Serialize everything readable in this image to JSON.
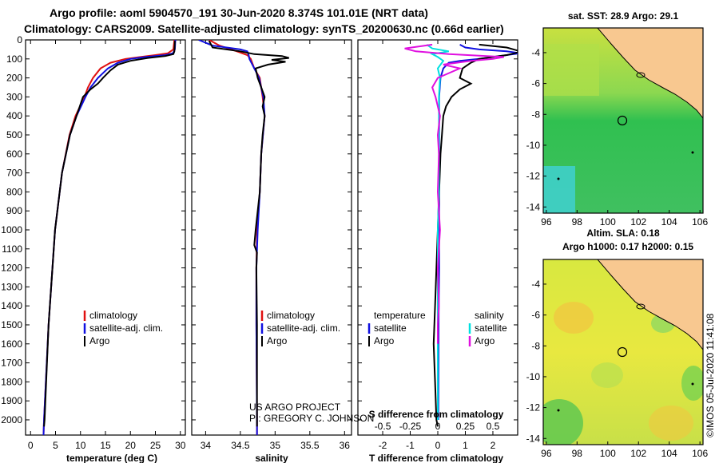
{
  "header": {
    "line1": "Argo profile: aoml 5904570_191 30-Jun-2020 8.374S 101.01E (NRT data)",
    "line2": "Climatology: CARS2009. Satellite-adjusted climatology: synTS_20200630.nc (0.66d earlier)"
  },
  "colors": {
    "climatology": "#e01010",
    "satellite": "#1010e0",
    "argo": "#000000",
    "sat_salinity": "#00e0e0",
    "argo_salinity": "#e010e0",
    "land": "#f8c890"
  },
  "chart_data": [
    {
      "type": "line",
      "id": "temperature",
      "xlabel": "temperature (deg C)",
      "ylabel": "",
      "xlim": [
        -1,
        31
      ],
      "ylim": [
        0,
        2080
      ],
      "xticks": [
        "0",
        "5",
        "10",
        "15",
        "20",
        "25",
        "30"
      ],
      "xtick_values": [
        0,
        5,
        10,
        15,
        20,
        25,
        30
      ],
      "yticks": [
        "0",
        "100",
        "200",
        "300",
        "400",
        "500",
        "600",
        "700",
        "800",
        "900",
        "1000",
        "1100",
        "1200",
        "1300",
        "1400",
        "1500",
        "1600",
        "1700",
        "1800",
        "1900",
        "2000"
      ],
      "ytick_values": [
        0,
        100,
        200,
        300,
        400,
        500,
        600,
        700,
        800,
        900,
        1000,
        1100,
        1200,
        1300,
        1400,
        1500,
        1600,
        1700,
        1800,
        1900,
        2000
      ],
      "legend": [
        "climatology",
        "satellite-adj. clim.",
        "Argo"
      ],
      "series": [
        {
          "name": "climatology",
          "color": "#e01010",
          "depth": [
            0,
            50,
            70,
            80,
            90,
            100,
            120,
            150,
            200,
            250,
            300,
            400,
            500,
            700,
            1000,
            1500,
            2000,
            2080
          ],
          "value": [
            28.8,
            28.6,
            27.5,
            25,
            22,
            19,
            16,
            14,
            12.5,
            11.5,
            10.8,
            9,
            7.8,
            6.3,
            4.9,
            3.6,
            2.7,
            2.6
          ]
        },
        {
          "name": "satellite-adj. clim.",
          "color": "#1010e0",
          "depth": [
            0,
            50,
            70,
            80,
            90,
            100,
            120,
            150,
            200,
            250,
            300,
            400,
            500,
            700,
            1000,
            1500,
            2000,
            2080
          ],
          "value": [
            29,
            28.9,
            28.5,
            27,
            23,
            20,
            17.5,
            15.5,
            13.5,
            12,
            11,
            9.2,
            7.9,
            6.3,
            4.9,
            3.6,
            2.7,
            2.6
          ]
        },
        {
          "name": "Argo",
          "color": "#000000",
          "depth": [
            5,
            60,
            75,
            85,
            95,
            110,
            130,
            160,
            200,
            230,
            260,
            300,
            400,
            500,
            700,
            1000,
            1500,
            2000,
            2035
          ],
          "value": [
            28.9,
            28.8,
            28.6,
            27,
            23.5,
            20,
            17.5,
            16,
            14.5,
            13.5,
            12,
            10.5,
            9.2,
            7.9,
            6.3,
            4.9,
            3.6,
            2.8,
            2.7
          ]
        }
      ]
    },
    {
      "type": "line",
      "id": "salinity",
      "xlabel": "salinity",
      "xlim": [
        33.8,
        36.1
      ],
      "ylim": [
        0,
        2080
      ],
      "xticks": [
        "34",
        "34.5",
        "35",
        "35.5",
        "36"
      ],
      "xtick_values": [
        34,
        34.5,
        35,
        35.5,
        36
      ],
      "legend": [
        "climatology",
        "satellite-adj. clim.",
        "Argo"
      ],
      "annotation": [
        "US ARGO PROJECT",
        "PI: GREGORY C. JOHNSON"
      ],
      "series": [
        {
          "name": "climatology",
          "color": "#e01010",
          "depth": [
            0,
            30,
            60,
            80,
            100,
            150,
            200,
            300,
            400,
            600,
            800,
            1000,
            1200,
            1500,
            2000,
            2080
          ],
          "value": [
            34.05,
            34.2,
            34.45,
            34.6,
            34.65,
            34.7,
            34.78,
            34.82,
            34.85,
            34.8,
            34.78,
            34.74,
            34.73,
            34.73,
            34.74,
            34.74
          ]
        },
        {
          "name": "satellite-adj. clim.",
          "color": "#1010e0",
          "depth": [
            0,
            30,
            50,
            60,
            80,
            100,
            150,
            200,
            300,
            400,
            600,
            800,
            1000,
            1200,
            1500,
            2000,
            2080
          ],
          "value": [
            33.9,
            34.1,
            34.5,
            34.6,
            34.62,
            34.63,
            34.7,
            34.77,
            34.83,
            34.85,
            34.8,
            34.78,
            34.75,
            34.73,
            34.73,
            34.74,
            34.74
          ]
        },
        {
          "name": "Argo",
          "color": "#000000",
          "depth": [
            5,
            40,
            60,
            75,
            85,
            95,
            105,
            115,
            130,
            150,
            200,
            250,
            300,
            350,
            400,
            500,
            600,
            800,
            1000,
            1080,
            1120,
            1200,
            1500,
            1800,
            2035
          ],
          "value": [
            34.05,
            34.1,
            34.5,
            34.7,
            35.1,
            35.2,
            34.95,
            35.15,
            34.9,
            34.72,
            34.75,
            34.8,
            34.85,
            34.82,
            34.85,
            34.82,
            34.8,
            34.78,
            34.72,
            34.7,
            34.74,
            34.73,
            34.74,
            34.74,
            34.74
          ]
        }
      ]
    },
    {
      "type": "line",
      "id": "difference",
      "xlabel": "T difference from climatology",
      "xlabel2": "S difference from climatology",
      "xlim": [
        -2.9,
        2.9
      ],
      "ylim": [
        0,
        2080
      ],
      "xticks": [
        "-2",
        "-1",
        "0",
        "1",
        "2"
      ],
      "xtick_values": [
        -2,
        -1,
        0,
        1,
        2
      ],
      "xticks2": [
        "-0.5",
        "-0.25",
        "0",
        "0.25",
        "0.5"
      ],
      "xtick2_values": [
        -0.5,
        -0.25,
        0,
        0.25,
        0.5
      ],
      "legend_temperature_title": "temperature",
      "legend_salinity_title": "salinity",
      "legend": [
        "satellite",
        "Argo"
      ],
      "series": [
        {
          "name": "satellite T",
          "color": "#1010e0",
          "depth": [
            25,
            40,
            50,
            60,
            70,
            80,
            90,
            100,
            110,
            120,
            150,
            200,
            300,
            500,
            800,
            1000,
            1200,
            1500,
            2000
          ],
          "value": [
            0.8,
            1.0,
            1.5,
            2.5,
            3.0,
            2.5,
            2.0,
            1.5,
            0.8,
            0.4,
            0.2,
            0.1,
            0.05,
            0.05,
            0.05,
            0.05,
            0.05,
            0.03,
            0.02
          ]
        },
        {
          "name": "Argo T",
          "color": "#000000",
          "depth": [
            25,
            40,
            60,
            70,
            80,
            90,
            100,
            120,
            150,
            200,
            230,
            260,
            300,
            350,
            400,
            500,
            600,
            800,
            1000,
            1200,
            1400,
            1600,
            1800,
            2000,
            2035
          ],
          "value": [
            1.5,
            2.5,
            3.0,
            2.8,
            2.5,
            2.0,
            1.5,
            1.2,
            0.9,
            0.8,
            1.2,
            0.8,
            0.5,
            0.3,
            0.2,
            0.15,
            0.1,
            0.05,
            0.0,
            -0.05,
            -0.1,
            -0.15,
            -0.1,
            -0.05,
            0.0
          ]
        },
        {
          "name": "satellite S",
          "color": "#00e0e0",
          "depth": [
            25,
            45,
            60,
            75,
            90,
            110,
            150,
            200,
            300,
            500,
            800,
            1000,
            1200,
            1500,
            2000
          ],
          "value": [
            -0.1,
            -0.05,
            0.1,
            -0.05,
            0.0,
            0.05,
            0.0,
            0.02,
            0.01,
            0.01,
            0.01,
            0.0,
            0.0,
            0.0,
            0.0
          ]
        },
        {
          "name": "Argo S",
          "color": "#e010e0",
          "depth": [
            25,
            45,
            60,
            75,
            90,
            100,
            110,
            130,
            150,
            200,
            250,
            300,
            350,
            400,
            500,
            600,
            800,
            1000,
            1200,
            1400,
            1500,
            1600
          ],
          "value": [
            -0.05,
            -0.3,
            -0.2,
            0.1,
            0.6,
            0.5,
            0.3,
            0.05,
            0.2,
            0.0,
            -0.05,
            -0.02,
            0.0,
            0.02,
            0.0,
            0.01,
            0.0,
            0.02,
            0.0,
            0.01,
            0.0,
            0.0
          ]
        }
      ]
    },
    {
      "type": "heatmap",
      "id": "sst_map",
      "title": "sat. SST: 28.9 Argo: 29.1",
      "xticks": [
        "96",
        "98",
        "100",
        "102",
        "104",
        "106"
      ],
      "xtick_values": [
        96,
        98,
        100,
        102,
        104,
        106
      ],
      "yticks": [
        "-4",
        "-6",
        "-8",
        "-10",
        "-12",
        "-14"
      ],
      "ytick_values": [
        -4,
        -6,
        -8,
        -10,
        -12,
        -14
      ],
      "xlim": [
        95.8,
        106.2
      ],
      "ylim": [
        -14.4,
        -2.4
      ],
      "argo_position": [
        101.01,
        -8.374
      ]
    },
    {
      "type": "heatmap",
      "id": "sla_map",
      "title": "Altim. SLA: 0.18",
      "subtitle": "Argo h1000: 0.17 h2000: 0.15",
      "xticks": [
        "96",
        "98",
        "100",
        "102",
        "104",
        "106"
      ],
      "xtick_values": [
        96,
        98,
        100,
        102,
        104,
        106
      ],
      "yticks": [
        "-4",
        "-6",
        "-8",
        "-10",
        "-12",
        "-14"
      ],
      "ytick_values": [
        -4,
        -6,
        -8,
        -10,
        -12,
        -14
      ],
      "xlim": [
        95.8,
        106.2
      ],
      "ylim": [
        -14.4,
        -2.4
      ],
      "argo_position": [
        101.01,
        -8.374
      ]
    }
  ],
  "credit": "©IMOS 05-Jul-2020 11:41:08"
}
